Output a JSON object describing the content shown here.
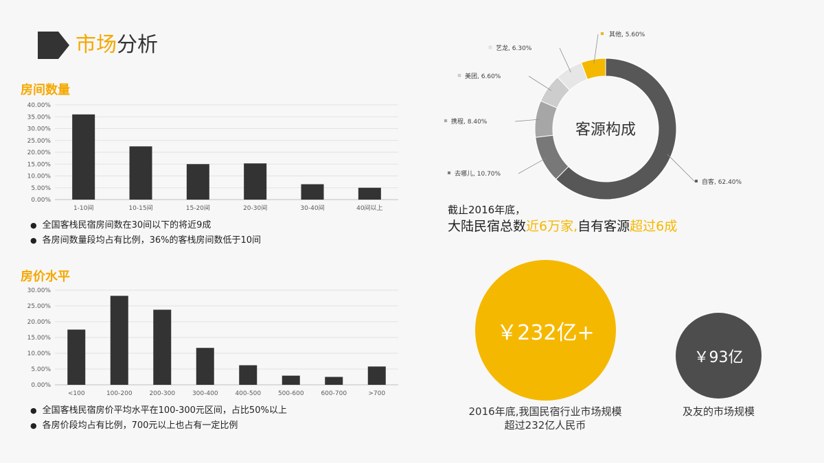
{
  "header": {
    "title_highlight": "市场",
    "title_rest": "分析"
  },
  "rooms": {
    "heading": "房间数量",
    "bullets": [
      "全国客栈民宿房间数在30间以下的将近9成",
      "各房间数量段均占有比例，36%的客栈房间数低于10间"
    ]
  },
  "prices": {
    "heading": "房价水平",
    "bullets": [
      "全国客栈民宿房价平均水平在100-300元区间，占比50%以上",
      "各房价段均占有比例，700元以上也占有一定比例"
    ]
  },
  "source_stat": {
    "line1": "截止2016年底，",
    "line2_a": "大陆民宿总数",
    "line2_b": "近6万家,",
    "line2_c": "自有客源",
    "line2_d": "超过6成"
  },
  "market": {
    "big_value": "￥232亿+",
    "big_caption_line1": "2016年底,我国民宿行业市场规模",
    "big_caption_line2": "超过232亿人民币",
    "small_value": "￥93亿",
    "small_caption": "及友的市场规模"
  },
  "colors": {
    "accent": "#f5b800",
    "bar": "#333333",
    "donut_main": "#575757"
  },
  "chart_data": [
    {
      "type": "bar",
      "categories": [
        "1-10间",
        "10-15间",
        "15-20间",
        "20-30间",
        "30-40间",
        "40间以上"
      ],
      "values": [
        36.0,
        22.5,
        15.0,
        15.3,
        6.5,
        5.0
      ],
      "yticks": [
        "0.00%",
        "5.00%",
        "10.00%",
        "15.00%",
        "20.00%",
        "25.00%",
        "30.00%",
        "35.00%",
        "40.00%"
      ],
      "ylim": [
        0,
        40
      ],
      "grid": true
    },
    {
      "type": "bar",
      "categories": [
        "<100",
        "100-200",
        "200-300",
        "300-400",
        "400-500",
        "500-600",
        "600-700",
        ">700"
      ],
      "values": [
        17.5,
        28.2,
        23.8,
        11.7,
        6.2,
        2.9,
        2.5,
        5.8
      ],
      "yticks": [
        "0.00%",
        "5.00%",
        "10.00%",
        "15.00%",
        "20.00%",
        "25.00%",
        "30.00%"
      ],
      "ylim": [
        0,
        30
      ],
      "grid": true
    },
    {
      "type": "pie",
      "donut": true,
      "center_label": "客源构成",
      "slices": [
        {
          "label": "自客",
          "value": 62.4,
          "value_label": "62.40%",
          "color": "#575757"
        },
        {
          "label": "去哪儿",
          "value": 10.7,
          "value_label": "10.70%",
          "color": "#787878"
        },
        {
          "label": "携程",
          "value": 8.4,
          "value_label": "8.40%",
          "color": "#a6a6a6"
        },
        {
          "label": "美团",
          "value": 6.6,
          "value_label": "6.60%",
          "color": "#cdcdcd"
        },
        {
          "label": "艺龙",
          "value": 6.3,
          "value_label": "6.30%",
          "color": "#e6e6e6"
        },
        {
          "label": "其他",
          "value": 5.6,
          "value_label": "5.60%",
          "color": "#f5b800"
        }
      ]
    }
  ]
}
